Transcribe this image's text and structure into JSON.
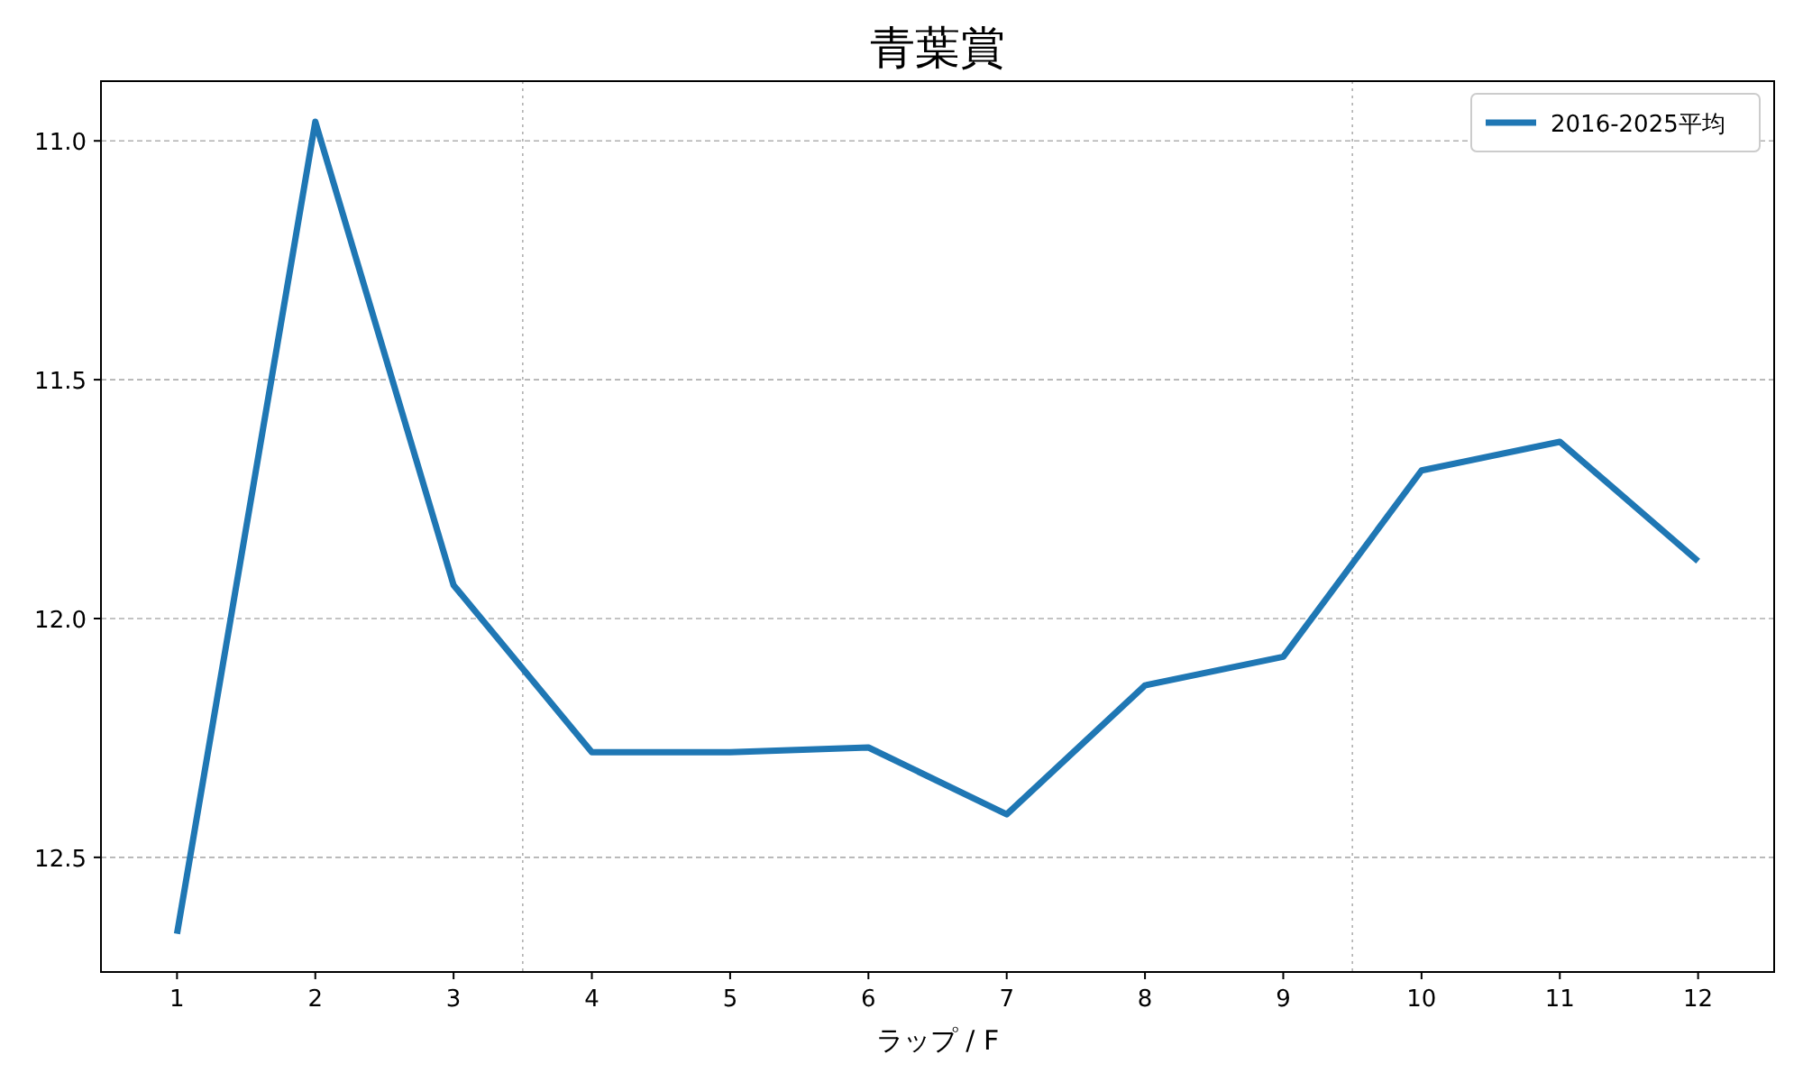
{
  "chart_data": {
    "type": "line",
    "title": "青葉賞",
    "xlabel": "ラップ / F",
    "x": [
      1,
      2,
      3,
      4,
      5,
      6,
      7,
      8,
      9,
      10,
      11,
      12
    ],
    "series": [
      {
        "name": "2016-2025平均",
        "color": "#1f77b4",
        "values": [
          12.66,
          10.96,
          11.93,
          12.28,
          12.28,
          12.27,
          12.41,
          12.14,
          12.08,
          11.69,
          11.63,
          11.88
        ]
      }
    ],
    "xlim": [
      0.45,
      12.55
    ],
    "ylim": [
      12.74,
      10.875
    ],
    "xticks": [
      1,
      2,
      3,
      4,
      5,
      6,
      7,
      8,
      9,
      10,
      11,
      12
    ],
    "yticks": [
      {
        "value": 11.0,
        "label": "11.0"
      },
      {
        "value": 11.5,
        "label": "11.5"
      },
      {
        "value": 12.0,
        "label": "12.0"
      },
      {
        "value": 12.5,
        "label": "12.5"
      }
    ],
    "ref_lines": [
      {
        "axis": "x",
        "value": 3.5,
        "color": "#b0b0b0",
        "line_style": "dotted"
      },
      {
        "axis": "x",
        "value": 9.5,
        "color": "#b0b0b0",
        "line_style": "dotted"
      }
    ],
    "grid": "y",
    "legend": "top right",
    "marker": "none",
    "line_style": "solid"
  }
}
